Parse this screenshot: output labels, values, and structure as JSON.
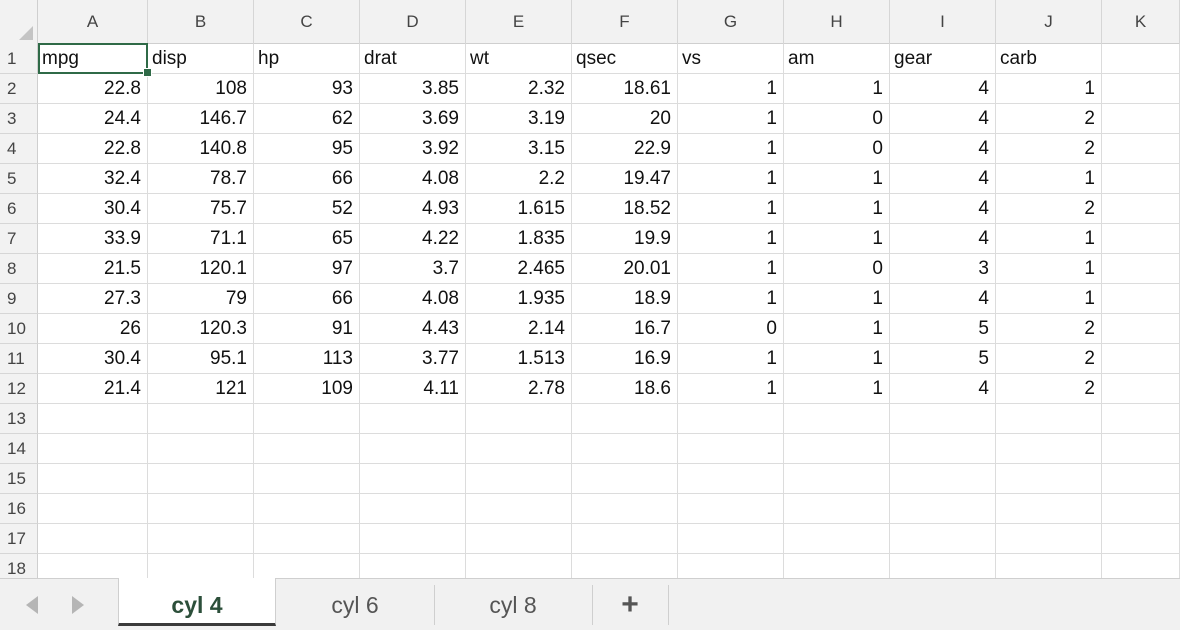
{
  "columns": [
    "A",
    "B",
    "C",
    "D",
    "E",
    "F",
    "G",
    "H",
    "I",
    "J",
    "K"
  ],
  "row_numbers": [
    "1",
    "2",
    "3",
    "4",
    "5",
    "6",
    "7",
    "8",
    "9",
    "10",
    "11",
    "12",
    "13",
    "14",
    "15",
    "16",
    "17",
    "18"
  ],
  "header_row": [
    "mpg",
    "disp",
    "hp",
    "drat",
    "wt",
    "qsec",
    "vs",
    "am",
    "gear",
    "carb"
  ],
  "data_rows": [
    [
      "22.8",
      "108",
      "93",
      "3.85",
      "2.32",
      "18.61",
      "1",
      "1",
      "4",
      "1"
    ],
    [
      "24.4",
      "146.7",
      "62",
      "3.69",
      "3.19",
      "20",
      "1",
      "0",
      "4",
      "2"
    ],
    [
      "22.8",
      "140.8",
      "95",
      "3.92",
      "3.15",
      "22.9",
      "1",
      "0",
      "4",
      "2"
    ],
    [
      "32.4",
      "78.7",
      "66",
      "4.08",
      "2.2",
      "19.47",
      "1",
      "1",
      "4",
      "1"
    ],
    [
      "30.4",
      "75.7",
      "52",
      "4.93",
      "1.615",
      "18.52",
      "1",
      "1",
      "4",
      "2"
    ],
    [
      "33.9",
      "71.1",
      "65",
      "4.22",
      "1.835",
      "19.9",
      "1",
      "1",
      "4",
      "1"
    ],
    [
      "21.5",
      "120.1",
      "97",
      "3.7",
      "2.465",
      "20.01",
      "1",
      "0",
      "3",
      "1"
    ],
    [
      "27.3",
      "79",
      "66",
      "4.08",
      "1.935",
      "18.9",
      "1",
      "1",
      "4",
      "1"
    ],
    [
      "26",
      "120.3",
      "91",
      "4.43",
      "2.14",
      "16.7",
      "0",
      "1",
      "5",
      "2"
    ],
    [
      "30.4",
      "95.1",
      "113",
      "3.77",
      "1.513",
      "16.9",
      "1",
      "1",
      "5",
      "2"
    ],
    [
      "21.4",
      "121",
      "109",
      "4.11",
      "2.78",
      "18.6",
      "1",
      "1",
      "4",
      "2"
    ]
  ],
  "selected_cell": "A1",
  "sheets": [
    {
      "label": "cyl 4",
      "active": true
    },
    {
      "label": "cyl 6",
      "active": false
    },
    {
      "label": "cyl 8",
      "active": false
    }
  ],
  "add_sheet_label": "+",
  "icons": {
    "prev_sheet": "chevron-left-icon",
    "next_sheet": "chevron-right-icon",
    "select_all": "select-all-corner-icon"
  },
  "colors": {
    "selection": "#2f6a47",
    "header_bg": "#f2f2f2",
    "active_tab_text": "#2c4f3a"
  }
}
